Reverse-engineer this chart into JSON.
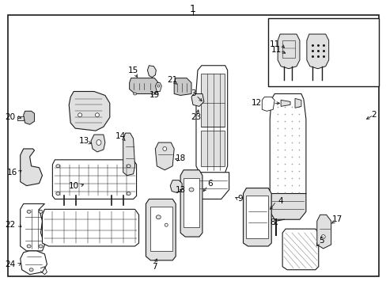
{
  "bg_color": "#f5f5f5",
  "border_color": "#000000",
  "line_color": "#1a1a1a",
  "text_color": "#000000",
  "fig_width": 4.89,
  "fig_height": 3.6,
  "dpi": 100,
  "title": "1",
  "gray_fill": "#c8c8c8",
  "light_gray": "#e0e0e0",
  "mid_gray": "#a0a0a0"
}
